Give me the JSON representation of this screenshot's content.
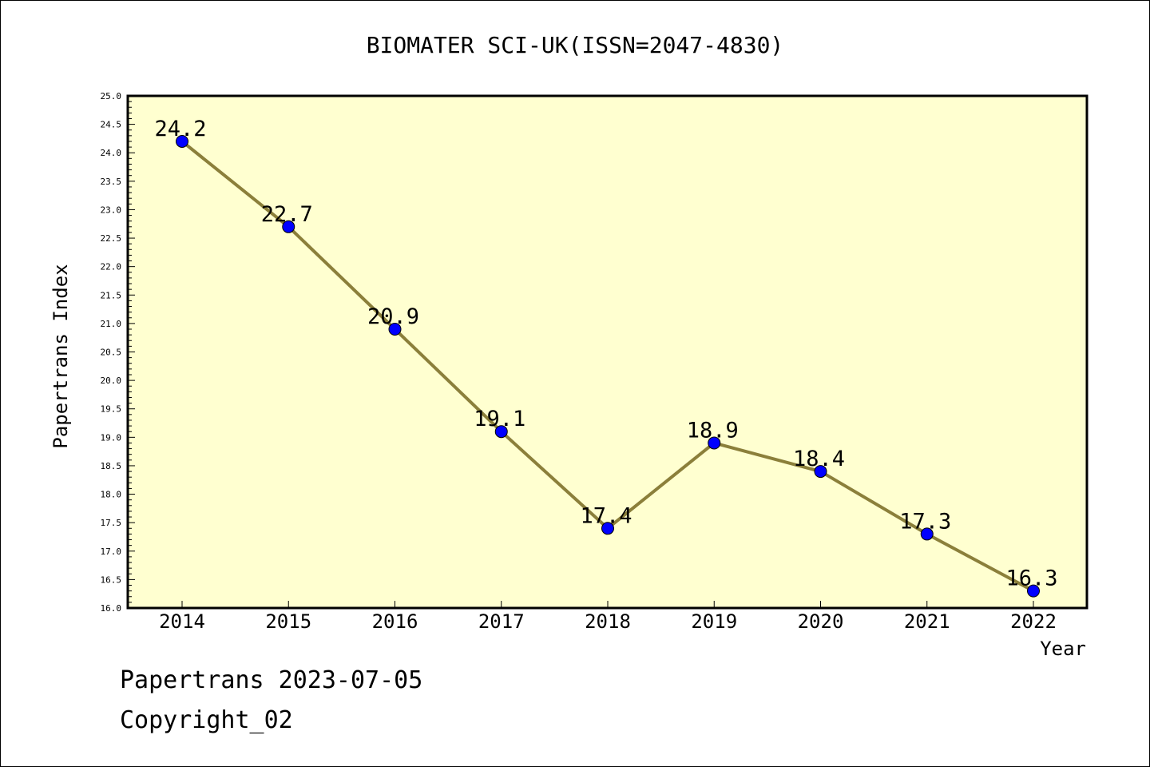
{
  "chart_data": {
    "type": "line",
    "title": "BIOMATER SCI-UK(ISSN=2047-4830)",
    "xlabel": "Year",
    "ylabel": "Papertrans Index",
    "categories": [
      "2014",
      "2015",
      "2016",
      "2017",
      "2018",
      "2019",
      "2020",
      "2021",
      "2022"
    ],
    "values": [
      24.2,
      22.7,
      20.9,
      19.1,
      17.4,
      18.9,
      18.4,
      17.3,
      16.3
    ],
    "data_labels": [
      "24.2",
      "22.7",
      "20.9",
      "19.1",
      "17.4",
      "18.9",
      "18.4",
      "17.3",
      "16.3"
    ],
    "ylim": [
      16.0,
      25.0
    ],
    "yticks": [
      "16.0",
      "16.5",
      "17.0",
      "17.5",
      "18.0",
      "18.5",
      "19.0",
      "19.5",
      "20.0",
      "20.5",
      "21.0",
      "21.5",
      "22.0",
      "22.5",
      "23.0",
      "23.5",
      "24.0",
      "24.5",
      "25.0"
    ],
    "grid": false,
    "colors": {
      "plot_background": "#ffffd0",
      "line": "#8b7f3a",
      "marker": "#0000ff"
    }
  },
  "footer": {
    "line1": "Papertrans 2023-07-05",
    "line2": "Copyright_02"
  }
}
